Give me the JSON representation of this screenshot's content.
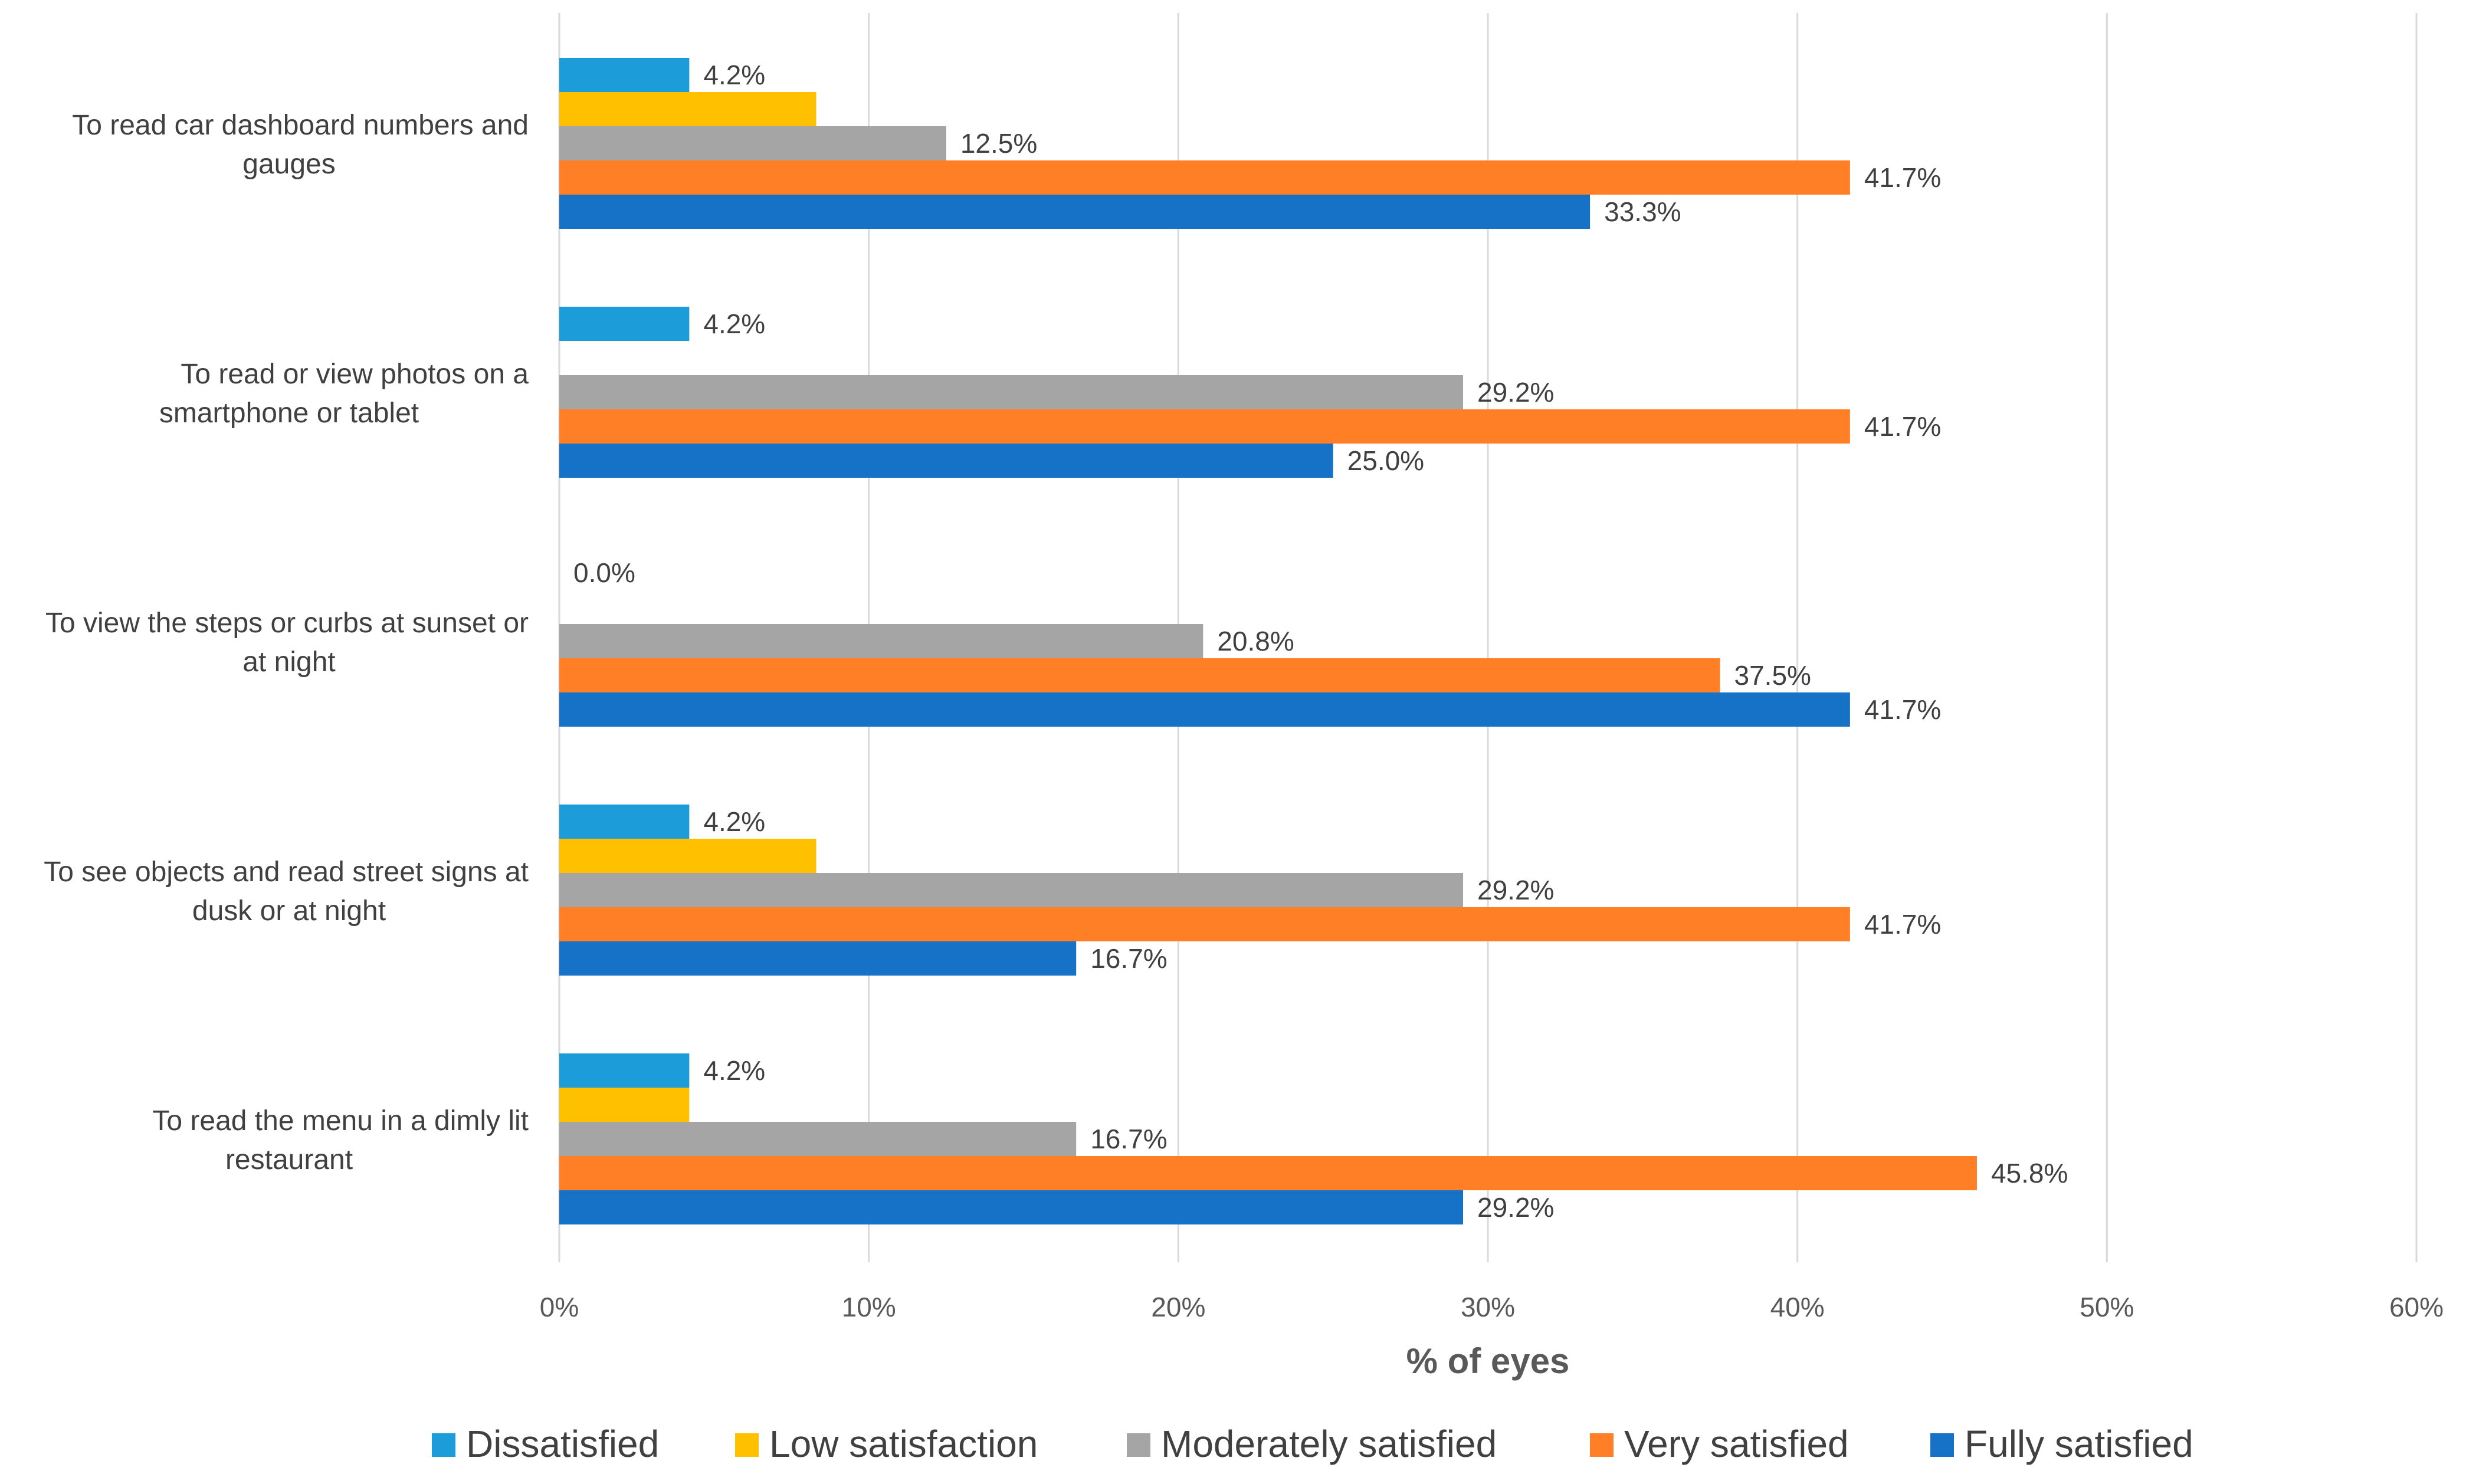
{
  "chart_data": {
    "type": "bar",
    "orientation": "horizontal",
    "title": "",
    "xlabel": "% of eyes",
    "ylabel": "",
    "xlim": [
      0,
      60
    ],
    "xticks": [
      "0%",
      "10%",
      "20%",
      "30%",
      "40%",
      "50%",
      "60%"
    ],
    "grid": true,
    "legend_position": "bottom",
    "categories": [
      [
        "To read car dashboard numbers and",
        "gauges"
      ],
      [
        "To read or view photos on a",
        "smartphone or tablet"
      ],
      [
        "To view the steps or curbs at sunset or",
        "at night"
      ],
      [
        "To see objects and read street signs at",
        "dusk or at night"
      ],
      [
        "To read the menu in a dimly lit",
        "restaurant"
      ]
    ],
    "series": [
      {
        "name": "Dissatisfied",
        "color": "#1C9CD9",
        "values": [
          4.2,
          4.2,
          0.0,
          4.2,
          4.2
        ],
        "labels": [
          "4.2%",
          "4.2%",
          "0.0%",
          "4.2%",
          "4.2%"
        ]
      },
      {
        "name": "Low satisfaction",
        "color": "#FFC000",
        "values": [
          8.3,
          0,
          0,
          8.3,
          4.2
        ],
        "labels": [
          null,
          null,
          null,
          null,
          null
        ]
      },
      {
        "name": "Moderately satisfied",
        "color": "#A5A5A5",
        "values": [
          12.5,
          29.2,
          20.8,
          29.2,
          16.7
        ],
        "labels": [
          "12.5%",
          "29.2%",
          "20.8%",
          "29.2%",
          "16.7%"
        ]
      },
      {
        "name": "Very satisfied",
        "color": "#FF7F27",
        "values": [
          41.7,
          41.7,
          37.5,
          41.7,
          45.8
        ],
        "labels": [
          "41.7%",
          "41.7%",
          "37.5%",
          "41.7%",
          "45.8%"
        ]
      },
      {
        "name": "Fully satisfied",
        "color": "#1572C7",
        "values": [
          33.3,
          25.0,
          41.7,
          16.7,
          29.2
        ],
        "labels": [
          "33.3%",
          "25.0%",
          "41.7%",
          "16.7%",
          "29.2%"
        ]
      }
    ]
  }
}
